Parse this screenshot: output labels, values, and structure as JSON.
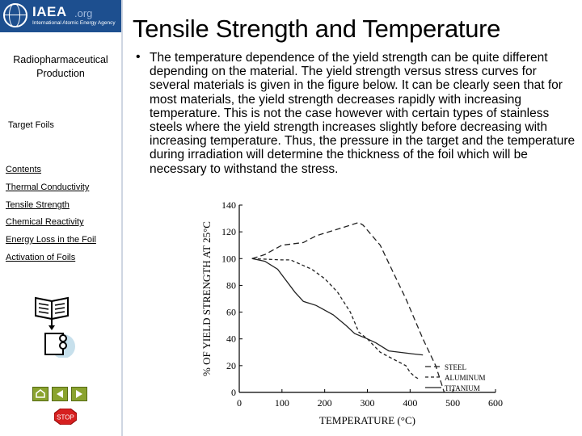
{
  "logo": {
    "name": "IAEA",
    "org": ".org",
    "subtitle": "International Atomic Energy Agency"
  },
  "sidebar": {
    "section_title": "Radiopharmaceutical Production",
    "subsection": "Target Foils",
    "contents_label": "Contents",
    "items": [
      {
        "label": "Thermal Conductivity"
      },
      {
        "label": "Tensile Strength"
      },
      {
        "label": "Chemical Reactivity"
      },
      {
        "label": "Energy Loss in the Foil"
      },
      {
        "label": "Activation of Foils"
      }
    ],
    "stop_label": "STOP"
  },
  "slide": {
    "title": "Tensile Strength and Temperature",
    "bullet": "•",
    "body": "The temperature dependence of the yield strength can be quite different depending on the material.  The yield strength versus stress curves for several materials is given in the figure below.  It can be clearly seen that for most materials, the yield strength decreases rapidly with increasing temperature.  This is not the case however with certain types of stainless steels where the yield strength increases slightly before decreasing with increasing temperature.  Thus, the pressure in the target and the temperature during irradiation will determine the thickness of the foil which will be necessary to withstand the stress."
  },
  "chart_data": {
    "type": "line",
    "xlabel": "TEMPERATURE  (°C)",
    "ylabel": "% OF YIELD STRENGTH AT 25°C",
    "xlim": [
      0,
      600
    ],
    "ylim": [
      0,
      140
    ],
    "xticks": [
      0,
      100,
      200,
      300,
      400,
      500,
      600
    ],
    "yticks": [
      0,
      20,
      40,
      60,
      80,
      100,
      120,
      140
    ],
    "legend_position": "bottom-right",
    "series": [
      {
        "name": "STEEL",
        "style": "long-dash",
        "points": [
          [
            30,
            100
          ],
          [
            60,
            103
          ],
          [
            100,
            110
          ],
          [
            150,
            112
          ],
          [
            180,
            117
          ],
          [
            210,
            120
          ],
          [
            260,
            125
          ],
          [
            280,
            127
          ],
          [
            290,
            125
          ],
          [
            330,
            110
          ],
          [
            360,
            90
          ],
          [
            390,
            70
          ],
          [
            430,
            40
          ],
          [
            460,
            20
          ],
          [
            480,
            0
          ]
        ]
      },
      {
        "name": "ALUMINUM",
        "style": "short-dash",
        "points": [
          [
            30,
            100
          ],
          [
            100,
            99
          ],
          [
            120,
            99
          ],
          [
            170,
            92
          ],
          [
            200,
            85
          ],
          [
            230,
            75
          ],
          [
            260,
            60
          ],
          [
            280,
            45
          ],
          [
            300,
            40
          ],
          [
            330,
            30
          ],
          [
            360,
            25
          ],
          [
            390,
            20
          ],
          [
            400,
            15
          ],
          [
            410,
            12
          ],
          [
            420,
            10
          ]
        ]
      },
      {
        "name": "TITANIUM",
        "style": "solid",
        "points": [
          [
            30,
            100
          ],
          [
            60,
            98
          ],
          [
            90,
            92
          ],
          [
            130,
            75
          ],
          [
            150,
            68
          ],
          [
            180,
            65
          ],
          [
            220,
            58
          ],
          [
            250,
            50
          ],
          [
            270,
            44
          ],
          [
            300,
            40
          ],
          [
            320,
            37
          ],
          [
            350,
            31
          ],
          [
            400,
            29
          ],
          [
            430,
            28
          ]
        ]
      }
    ]
  }
}
